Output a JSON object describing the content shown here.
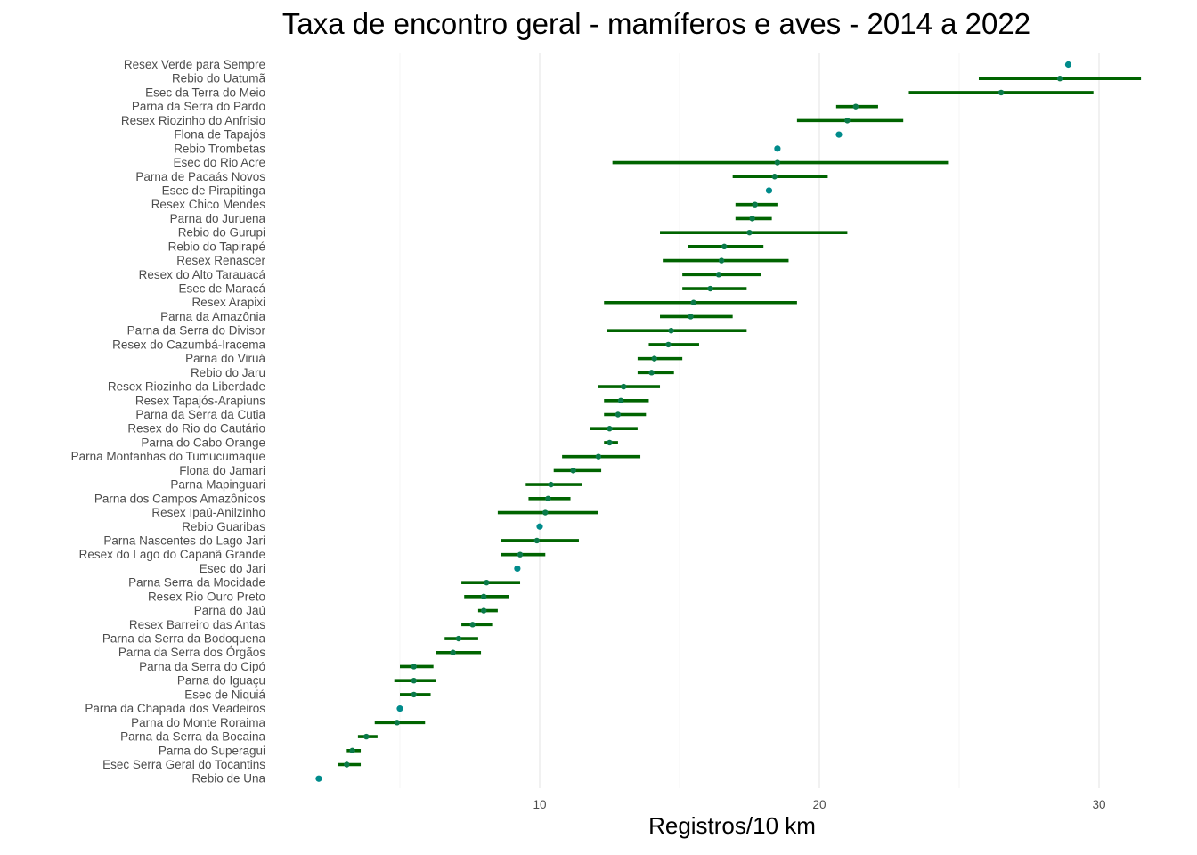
{
  "chart_data": {
    "type": "scatter",
    "title": "Taxa de encontro geral - mamíferos e aves - 2014 a 2022",
    "xlabel": "Registros/10 km",
    "ylabel": "",
    "xlim": [
      2.0,
      31.5
    ],
    "xticks": [
      10,
      20,
      30
    ],
    "grid": true,
    "point_color": "#008b8b",
    "interval_color": "#006400",
    "categories": [
      "Resex Verde para Sempre",
      "Rebio do Uatumã",
      "Esec da Terra do Meio",
      "Parna da Serra do Pardo",
      "Resex Riozinho do Anfrísio",
      "Flona de Tapajós",
      "Rebio Trombetas",
      "Esec do Rio Acre",
      "Parna de Pacaás Novos",
      "Esec de Pirapitinga",
      "Resex Chico Mendes",
      "Parna do Juruena",
      "Rebio do Gurupi",
      "Rebio do Tapirapé",
      "Resex Renascer",
      "Resex do Alto Tarauacá",
      "Esec de Maracá",
      "Resex Arapixi",
      "Parna da Amazônia",
      "Parna da Serra do Divisor",
      "Resex do Cazumbá-Iracema",
      "Parna do Viruá",
      "Rebio do Jaru",
      "Resex Riozinho da Liberdade",
      "Resex Tapajós-Arapiuns",
      "Parna da Serra da Cutia",
      "Resex do Rio do Cautário",
      "Parna do Cabo Orange",
      "Parna Montanhas do Tumucumaque",
      "Flona do Jamari",
      "Parna Mapinguari",
      "Parna dos Campos Amazônicos",
      "Resex Ipaú-Anilzinho",
      "Rebio Guaribas",
      "Parna Nascentes do Lago Jari",
      "Resex do Lago do Capanã Grande",
      "Esec do Jari",
      "Parna Serra da Mocidade",
      "Resex Rio Ouro Preto",
      "Parna do Jaú",
      "Resex Barreiro das Antas",
      "Parna da Serra da Bodoquena",
      "Parna da Serra dos Órgãos",
      "Parna da Serra do Cipó",
      "Parna do Iguaçu",
      "Esec de Niquiá",
      "Parna da Chapada dos Veadeiros",
      "Parna do Monte Roraima",
      "Parna da Serra da Bocaina",
      "Parna do Superagui",
      "Esec Serra Geral do Tocantins",
      "Rebio de Una"
    ],
    "values": [
      28.9,
      28.6,
      26.5,
      21.3,
      21.0,
      20.7,
      18.5,
      18.5,
      18.4,
      18.2,
      17.7,
      17.6,
      17.5,
      16.6,
      16.5,
      16.4,
      16.1,
      15.5,
      15.4,
      14.7,
      14.6,
      14.1,
      14.0,
      13.0,
      12.9,
      12.8,
      12.5,
      12.5,
      12.1,
      11.2,
      10.4,
      10.3,
      10.2,
      10.0,
      9.9,
      9.3,
      9.2,
      8.1,
      8.0,
      8.0,
      7.6,
      7.1,
      6.9,
      5.5,
      5.5,
      5.5,
      5.0,
      4.9,
      3.8,
      3.3,
      3.1,
      2.1
    ],
    "lower": [
      null,
      25.7,
      23.2,
      20.6,
      19.2,
      null,
      null,
      12.6,
      16.9,
      null,
      17.0,
      17.0,
      14.3,
      15.3,
      14.4,
      15.1,
      15.1,
      12.3,
      14.3,
      12.4,
      13.9,
      13.5,
      13.5,
      12.1,
      12.3,
      12.3,
      11.8,
      12.3,
      10.8,
      10.5,
      9.5,
      9.6,
      8.5,
      null,
      8.6,
      8.6,
      null,
      7.2,
      7.3,
      7.8,
      7.2,
      6.6,
      6.3,
      5.0,
      4.8,
      5.0,
      null,
      4.1,
      3.5,
      3.1,
      2.8,
      null
    ],
    "upper": [
      null,
      31.5,
      29.8,
      22.1,
      23.0,
      null,
      null,
      24.6,
      20.3,
      null,
      18.5,
      18.3,
      21.0,
      18.0,
      18.9,
      17.9,
      17.4,
      19.2,
      16.9,
      17.4,
      15.7,
      15.1,
      14.8,
      14.3,
      13.9,
      13.8,
      13.5,
      12.8,
      13.6,
      12.2,
      11.5,
      11.1,
      12.1,
      null,
      11.4,
      10.2,
      null,
      9.3,
      8.9,
      8.5,
      8.3,
      7.8,
      7.9,
      6.2,
      6.3,
      6.1,
      null,
      5.9,
      4.2,
      3.6,
      3.6,
      null
    ]
  }
}
